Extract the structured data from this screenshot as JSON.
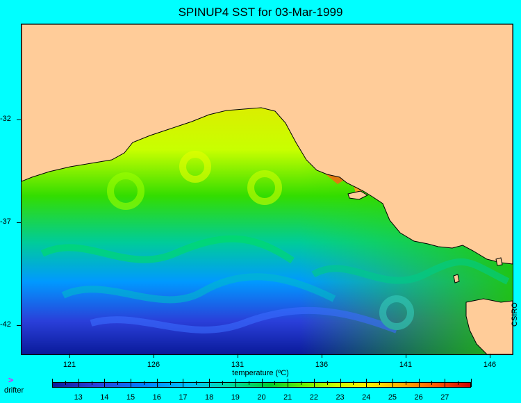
{
  "title": "SPINUP4 SST for 03-Mar-1999",
  "credit": "CSIRO",
  "colors": {
    "background": "#00ffff",
    "land": "#ffcc99",
    "coast": "#000000",
    "legend_marker": "#ff00ff"
  },
  "map": {
    "y_ticks": [
      "-32",
      "-37",
      "-42"
    ],
    "x_ticks": [
      "121",
      "126",
      "131",
      "136",
      "141",
      "146"
    ]
  },
  "colorbar": {
    "title": "temperature (ºC)",
    "labels": [
      "13",
      "14",
      "15",
      "16",
      "17",
      "18",
      "19",
      "20",
      "21",
      "22",
      "23",
      "24",
      "25",
      "26",
      "27"
    ],
    "min": 12,
    "max": 28
  },
  "legend": {
    "marker": ">",
    "label": "drifter"
  }
}
